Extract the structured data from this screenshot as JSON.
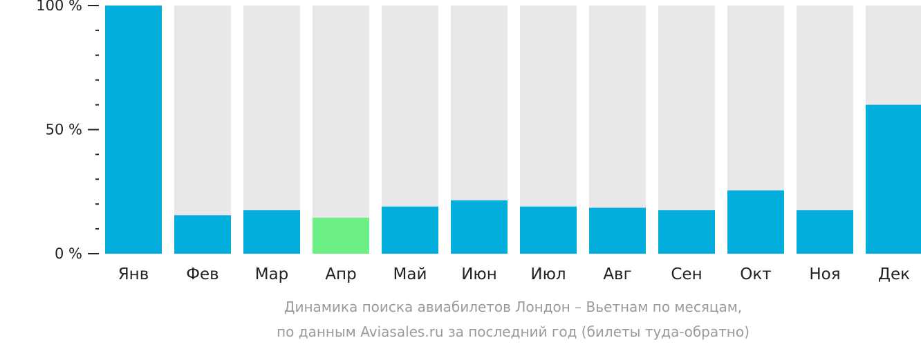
{
  "colors": {
    "bar": "#03aedd",
    "highlight": "#6cf086",
    "background_bar": "#e8e8e8",
    "axis": "#222222",
    "caption": "#9a9a9a"
  },
  "caption": {
    "line1": "Динамика поиска авиабилетов Лондон – Вьетнам по месяцам,",
    "line2": "по данным Aviasales.ru за последний год (билеты туда-обратно)"
  },
  "chart_data": {
    "type": "bar",
    "categories": [
      "Янв",
      "Фев",
      "Мар",
      "Апр",
      "Май",
      "Июн",
      "Июл",
      "Авг",
      "Сен",
      "Окт",
      "Ноя",
      "Дек"
    ],
    "values": [
      100,
      15.5,
      17.5,
      14.5,
      19,
      21.5,
      19,
      18.5,
      17.5,
      25.5,
      17.5,
      60
    ],
    "highlight_index": 3,
    "ylim": [
      0,
      100
    ],
    "yticks": [
      {
        "value": 0,
        "label": "0 %"
      },
      {
        "value": 50,
        "label": "50 %"
      },
      {
        "value": 100,
        "label": "100 %"
      }
    ],
    "minor_step": 10,
    "grid": false
  }
}
